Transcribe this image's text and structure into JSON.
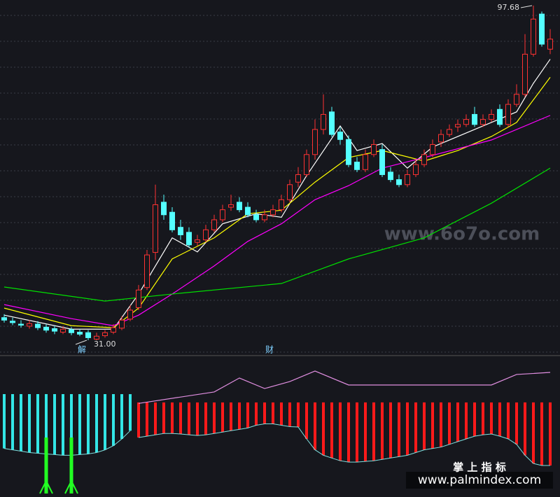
{
  "chart_data": [
    {
      "type": "candlestick",
      "open": [
        35.5,
        34.8,
        34.2,
        33.8,
        34.2,
        33.6,
        33.3,
        32.6,
        33.1,
        32.6,
        32.5,
        31.2,
        31.9,
        32.6,
        33.4,
        35.2,
        37.5,
        41.5,
        48.5,
        58.5,
        56.5,
        53.5,
        52.5,
        50.5,
        51,
        53,
        55,
        57.5,
        58.5,
        57.5,
        56,
        55,
        56,
        57,
        59,
        62.5,
        64,
        68,
        73,
        76.5,
        72.5,
        71,
        66.5,
        65,
        68,
        69,
        64.5,
        63,
        62,
        64,
        66,
        68,
        70.5,
        72,
        73.5,
        74,
        76,
        74,
        75,
        77,
        74,
        78,
        80,
        88,
        96,
        89
      ],
      "high": [
        36.2,
        35.5,
        35,
        35,
        34.8,
        34.2,
        33.9,
        33.8,
        33.6,
        33.2,
        33,
        32.5,
        33,
        34.2,
        35.8,
        38,
        42,
        49,
        62,
        60,
        57.5,
        55,
        53.5,
        52,
        54,
        56,
        58,
        60,
        59.5,
        58.5,
        57,
        57,
        58,
        60,
        63,
        65.5,
        69,
        75,
        80,
        77.5,
        73.5,
        71.8,
        67.5,
        69,
        71,
        70,
        65.5,
        64,
        65,
        67,
        69,
        71,
        73,
        74,
        75,
        76,
        77.5,
        76,
        77,
        78,
        79,
        82,
        92,
        97.68,
        96.5,
        93
      ],
      "low": [
        34.5,
        34,
        33.5,
        33.3,
        33,
        32.5,
        32.2,
        32.2,
        32,
        31.8,
        31,
        31,
        31.5,
        32.2,
        33,
        34.8,
        37,
        41,
        47,
        55,
        52.5,
        51,
        49.5,
        49.8,
        50.5,
        52.5,
        54.5,
        56.8,
        56.5,
        55.5,
        54.5,
        54.5,
        55.5,
        56.5,
        58.5,
        61.5,
        63.5,
        67,
        72,
        71.5,
        70,
        65.5,
        64.5,
        64.5,
        67.5,
        63.5,
        62.5,
        61.5,
        61.5,
        63.5,
        65.5,
        67.5,
        69.5,
        71.5,
        72.5,
        73.5,
        73.5,
        73.5,
        74.5,
        73.5,
        73.5,
        77.5,
        79.5,
        87.5,
        89.5,
        88
      ],
      "close": [
        35,
        34.5,
        34,
        34.3,
        33.5,
        33,
        32.8,
        33.2,
        32.5,
        32.2,
        31.5,
        31.8,
        32.5,
        33.5,
        35,
        37,
        41,
        48,
        58,
        56,
        53,
        52,
        50,
        51,
        53,
        55,
        57,
        58,
        57,
        56,
        55,
        56,
        57,
        59,
        62,
        64,
        68,
        73,
        76,
        72,
        71,
        66,
        65,
        68,
        70,
        64,
        63,
        62,
        64,
        66,
        68,
        70,
        72,
        73,
        74,
        75,
        74,
        75,
        76,
        74,
        78,
        80,
        88,
        95,
        90,
        91
      ],
      "up_color": "#ff3232",
      "down_color": "#54ffff",
      "ylim": [
        28.35,
        98.8
      ],
      "annotations": [
        {
          "label": "97.68",
          "value": 97.68,
          "of": "high"
        },
        {
          "label": "31.00",
          "value": 31,
          "of": "low"
        }
      ],
      "lines": [
        {
          "color": "#ffffff",
          "x": [
            0,
            8,
            13,
            16,
            20,
            23,
            26,
            30,
            33,
            36,
            40,
            42,
            45,
            48,
            51,
            56,
            61,
            63,
            65
          ],
          "values": [
            36,
            33.2,
            33.2,
            40.2,
            51.4,
            48.6,
            54.2,
            56.2,
            55.5,
            63.8,
            73.7,
            68.8,
            70.2,
            65.3,
            69.5,
            73,
            76.5,
            82.2,
            87
          ]
        },
        {
          "color": "#ffff00",
          "x": [
            0,
            8,
            13,
            16,
            20,
            25,
            29,
            33,
            37,
            41,
            45,
            50,
            54,
            58,
            61,
            65
          ],
          "values": [
            37.4,
            33.9,
            33.5,
            37.4,
            47.2,
            51.4,
            56.2,
            56.9,
            62.5,
            67.4,
            68.8,
            66.7,
            68.8,
            71.6,
            74.4,
            83.4
          ]
        },
        {
          "color": "#ff00ff",
          "x": [
            0,
            8,
            13,
            16,
            20,
            25,
            29,
            33,
            37,
            41,
            45,
            50,
            58,
            65
          ],
          "values": [
            38.1,
            35.3,
            33.9,
            36,
            40.2,
            45.8,
            50.7,
            54.2,
            59,
            61.8,
            65.3,
            67.4,
            70.9,
            75.8
          ]
        },
        {
          "color": "#00e000",
          "x": [
            0,
            12,
            20,
            33,
            41,
            50,
            58,
            65
          ],
          "values": [
            41.6,
            38.8,
            40.2,
            42.3,
            47.2,
            51.4,
            58.3,
            65.3
          ]
        }
      ],
      "markers": [
        "解",
        "财"
      ]
    },
    {
      "type": "indicator",
      "ylim": [
        0,
        100
      ],
      "bars": [
        {
          "color": "#33e6e6",
          "base": 72.8,
          "x": [
            0,
            1,
            2,
            3,
            4,
            5,
            6,
            7,
            8,
            9,
            10,
            11,
            12,
            13,
            14,
            15
          ],
          "values": [
            33,
            32,
            31,
            30,
            29.5,
            29,
            28.5,
            28,
            28,
            28.5,
            29,
            30,
            32,
            35,
            40,
            46
          ]
        },
        {
          "color": "#ff1a1a",
          "base": 66.7,
          "x": [
            16,
            17,
            18,
            19,
            20,
            21,
            22,
            23,
            24,
            25,
            26,
            27,
            28,
            29,
            30,
            31,
            32,
            33,
            34,
            35,
            36,
            37,
            38,
            39,
            40,
            41,
            42,
            43,
            44,
            45,
            46,
            47,
            48,
            49,
            50,
            51,
            52,
            53,
            54,
            55,
            56,
            57,
            58,
            59,
            60,
            61,
            62,
            63,
            64,
            65
          ],
          "values": [
            41,
            42,
            43,
            44,
            44,
            43.6,
            43,
            42.5,
            43,
            44,
            45,
            46,
            47,
            48,
            50,
            51,
            51,
            50,
            49,
            48.7,
            40,
            32,
            28,
            26,
            24,
            23,
            23,
            23.5,
            24,
            25,
            26,
            27,
            28,
            30,
            32,
            33,
            34,
            36,
            38,
            40,
            42,
            43,
            43.6,
            42,
            40,
            36,
            28,
            22,
            20.5,
            20.5
          ]
        }
      ],
      "line": {
        "color": "#e08ee0",
        "x": [
          16,
          25,
          28,
          31,
          34,
          37,
          41,
          50,
          58,
          61,
          65
        ],
        "values": [
          66,
          74.4,
          84.6,
          76.9,
          82,
          89.7,
          79.5,
          79.5,
          79.5,
          87.2,
          88.7
        ]
      },
      "signals": {
        "color": "#22ff22",
        "x": [
          5,
          8
        ],
        "values": [
          41,
          41
        ]
      }
    }
  ],
  "watermarks": [
    "www.6o7o.com",
    "掌 上 指 标",
    "www.palmindex.com"
  ]
}
